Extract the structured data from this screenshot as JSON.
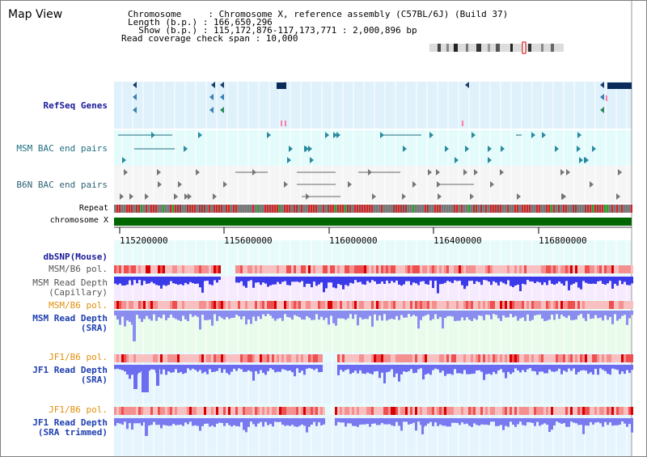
{
  "view": {
    "title": "Map View"
  },
  "info": {
    "line1": "Chromosome     : Chromosome X, reference assembly (C57BL/6J) (Build 37)",
    "line2": "Length (b.p.) : 166,650,296",
    "line3": "  Show (b.p.) : 115,172,876-117,173,771 : 2,000,896 bp",
    "line4": "Read coverage check span : 10,000"
  },
  "tracks": {
    "refseq": "RefSeq Genes",
    "msm_bac": "MSM BAC end pairs",
    "b6n_bac": "B6N BAC end pairs",
    "repeat": "Repeat",
    "chromosome": "chromosome X",
    "dbsnp": "dbSNP(Mouse)",
    "msm_b6_pol": "MSM/B6 pol.",
    "msm_read_depth_cap": "MSM Read Depth\n(Capillary)",
    "msm_b6_pol2": "MSM/B6 pol.",
    "msm_read_depth_sra": "MSM Read Depth\n(SRA)",
    "jf1_b6_pol": "JF1/B6 pol.",
    "jf1_read_depth_sra": "JF1 Read Depth\n(SRA)",
    "jf1_b6_pol2": "JF1/B6 pol.",
    "jf1_read_depth_trim": "JF1 Read Depth\n(SRA trimmed)"
  },
  "axis": {
    "ticks": [
      "115200000",
      "115600000",
      "116000000",
      "116400000",
      "116800000"
    ]
  },
  "colors": {
    "label_navy": "#1a1a99",
    "label_teal": "#1f6e82",
    "label_orange": "#e0900a",
    "depth_blue": "#3c3ce6",
    "pol_red": "#e83030",
    "chrom_green": "#006600"
  }
}
